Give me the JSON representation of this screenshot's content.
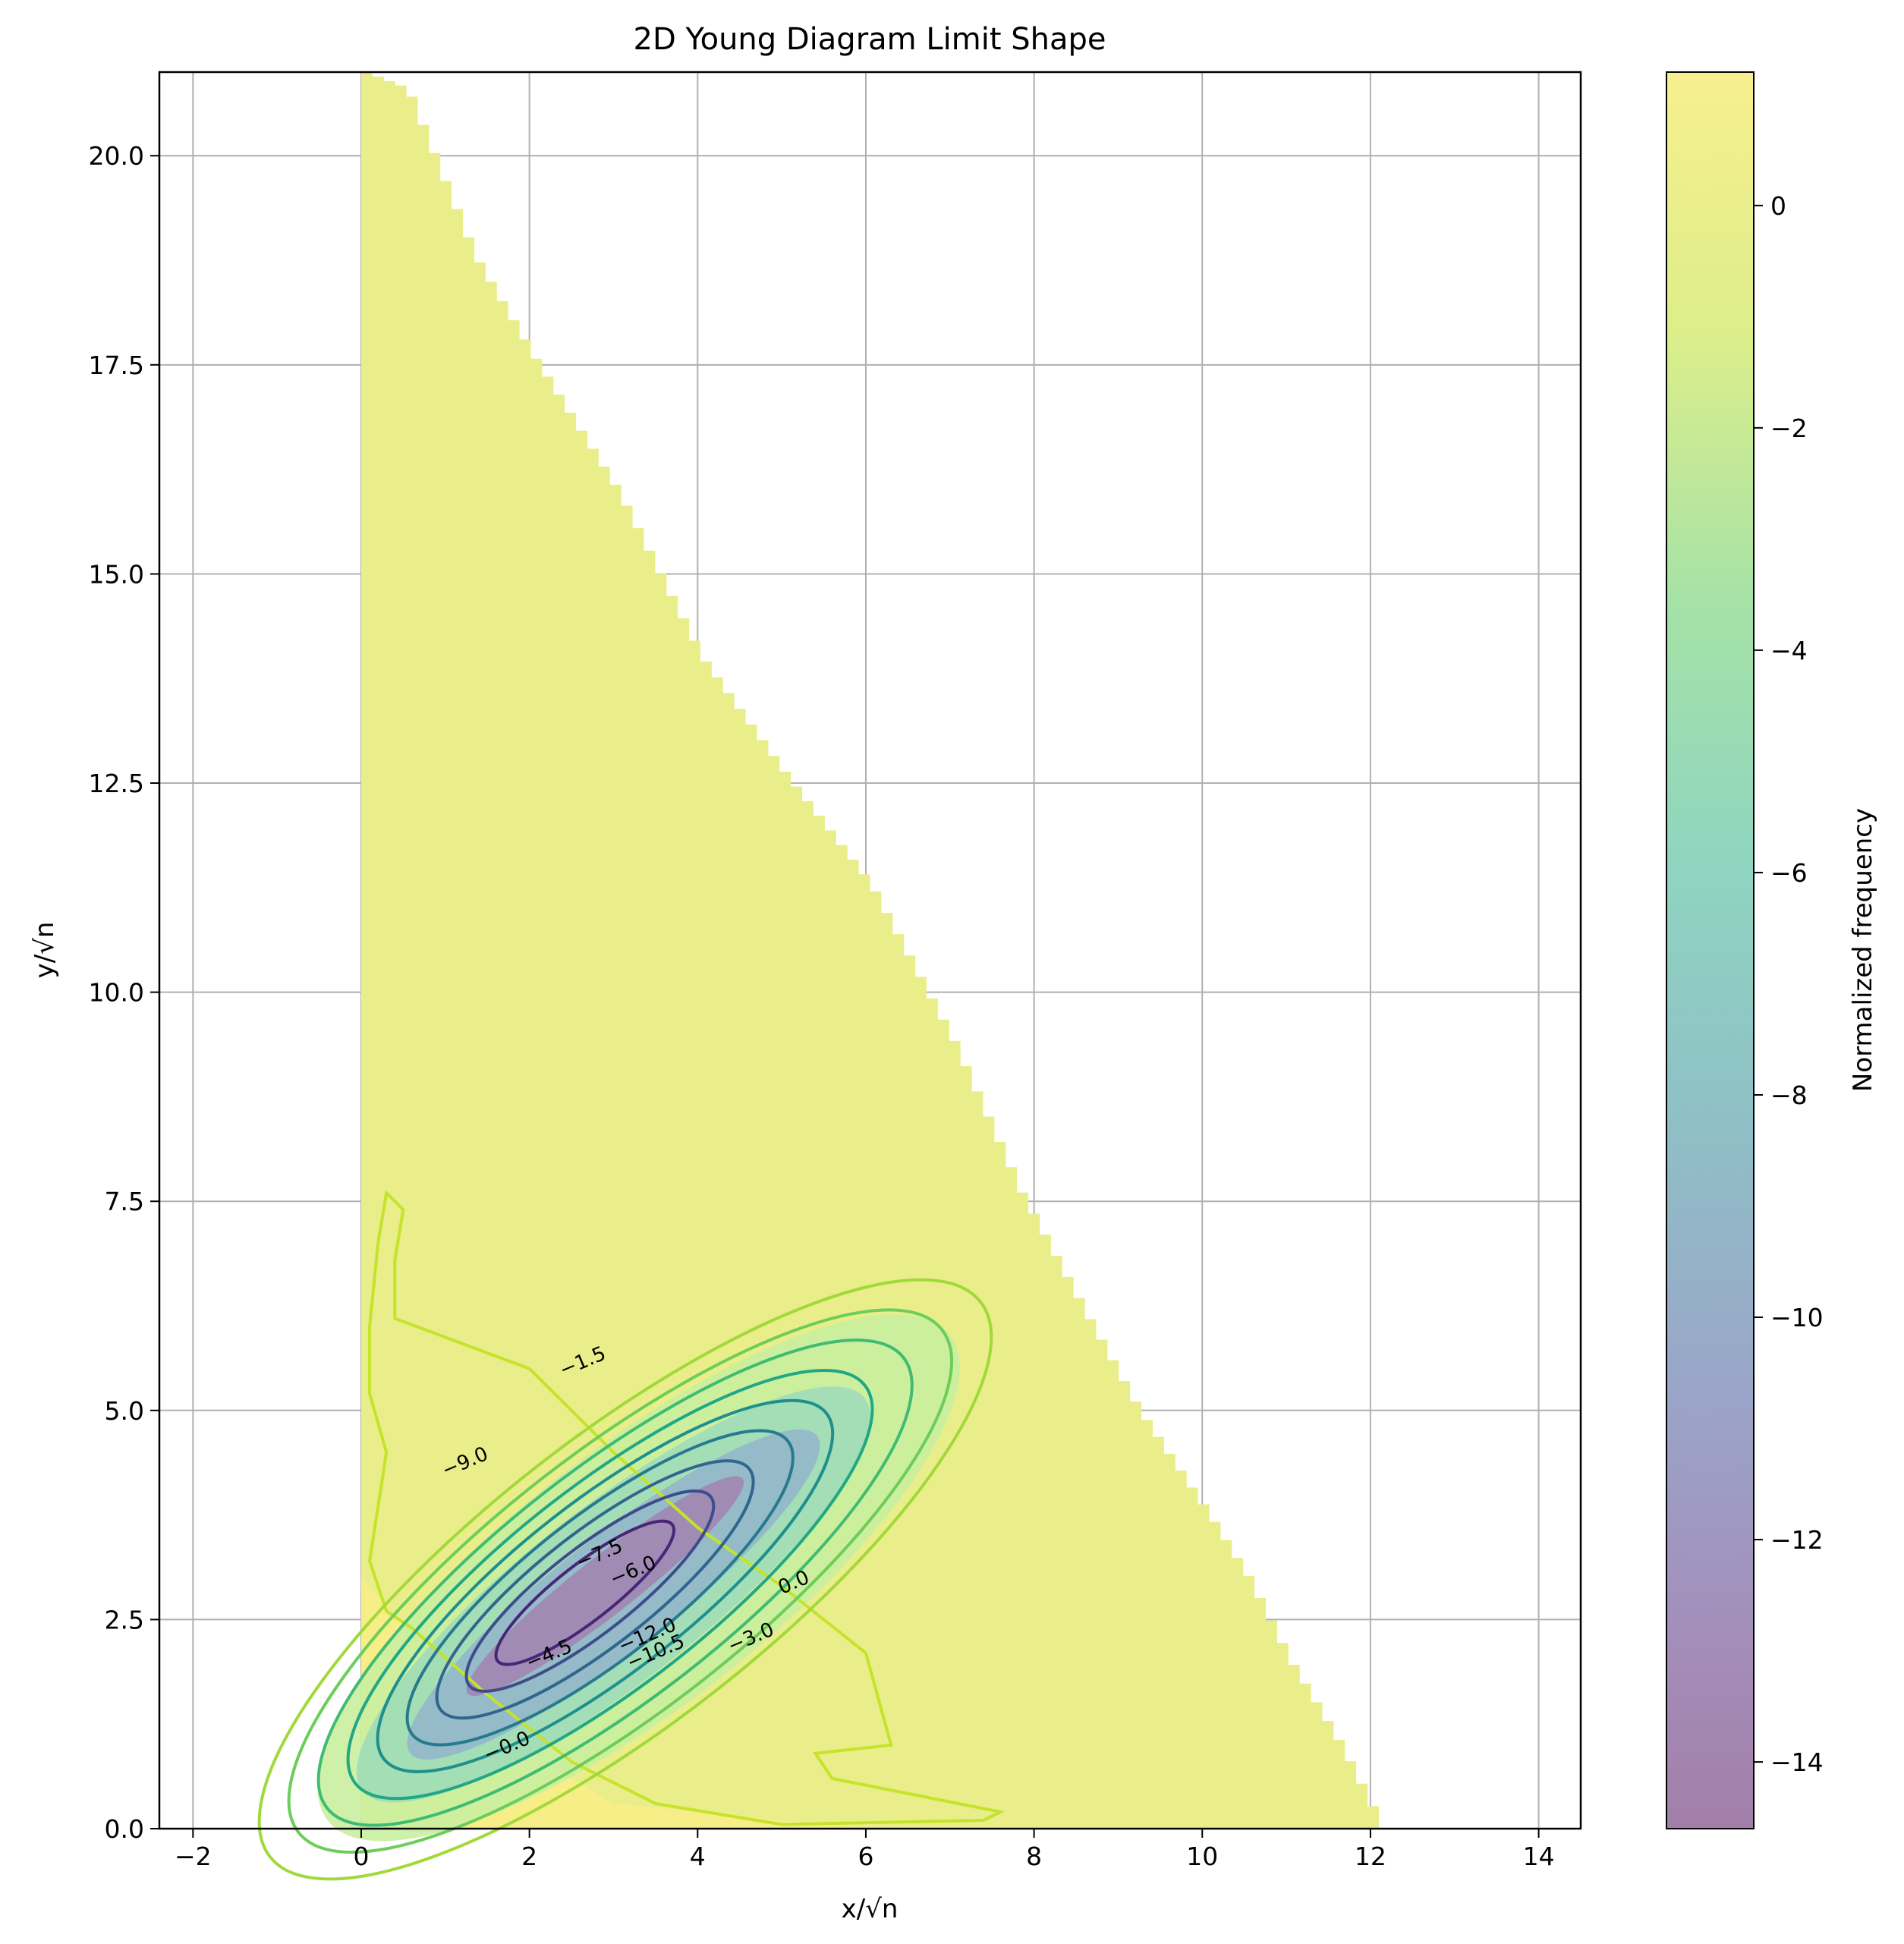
{
  "chart_data": {
    "type": "heatmap",
    "title": "2D Young Diagram Limit Shape",
    "xlabel": "x/√n",
    "ylabel": "y/√n",
    "xlim": [
      -2.4,
      14.5
    ],
    "ylim": [
      0,
      21
    ],
    "xticks": [
      -2,
      0,
      2,
      4,
      6,
      8,
      10,
      12,
      14
    ],
    "yticks": [
      0.0,
      2.5,
      5.0,
      7.5,
      10.0,
      12.5,
      15.0,
      17.5,
      20.0
    ],
    "xtick_labels": [
      "−2",
      "0",
      "2",
      "4",
      "6",
      "8",
      "10",
      "12",
      "14"
    ],
    "ytick_labels": [
      "0.0",
      "2.5",
      "5.0",
      "7.5",
      "10.0",
      "12.5",
      "15.0",
      "17.5",
      "20.0"
    ],
    "grid": true,
    "colorbar": {
      "label": "Normalized frequency",
      "range": [
        -14.6,
        1.2
      ],
      "ticks": [
        0,
        -2,
        -4,
        -6,
        -8,
        -10,
        -12,
        -14
      ],
      "tick_labels": [
        "0",
        "−2",
        "−4",
        "−6",
        "−8",
        "−10",
        "−12",
        "−14"
      ],
      "colormap": "viridis",
      "alpha": 0.5
    },
    "region_boundary": [
      [
        0.0,
        21.0
      ],
      [
        0.5,
        20.8
      ],
      [
        1.3,
        18.8
      ],
      [
        2.0,
        17.6
      ],
      [
        3.0,
        16.0
      ],
      [
        4.0,
        14.0
      ],
      [
        5.0,
        12.6
      ],
      [
        6.0,
        11.3
      ],
      [
        7.0,
        9.4
      ],
      [
        7.8,
        7.6
      ],
      [
        8.6,
        6.1
      ],
      [
        9.2,
        5.0
      ],
      [
        10.0,
        3.8
      ],
      [
        10.5,
        3.0
      ],
      [
        11.0,
        2.0
      ],
      [
        11.6,
        1.0
      ],
      [
        12.1,
        0.0
      ]
    ],
    "contour_levels": [
      0.0,
      -1.5,
      -3.0,
      -4.5,
      -6.0,
      -7.5,
      -9.0,
      -10.5,
      -12.0,
      -13.5
    ],
    "contour_labels": [
      {
        "text": "0.0",
        "x": 5.0,
        "y": 2.8
      },
      {
        "text": "−1.5",
        "x": 2.4,
        "y": 5.4
      },
      {
        "text": "−3.0",
        "x": 4.4,
        "y": 2.1
      },
      {
        "text": "−6.0",
        "x": 3.0,
        "y": 2.9
      },
      {
        "text": "−7.5",
        "x": 2.6,
        "y": 3.1
      },
      {
        "text": "−10.5",
        "x": 3.2,
        "y": 1.9
      },
      {
        "text": "−12.0",
        "x": 3.1,
        "y": 2.1
      },
      {
        "text": "−4.5",
        "x": 2.0,
        "y": 1.9
      },
      {
        "text": "−0.0",
        "x": 1.5,
        "y": 0.8
      },
      {
        "text": "−9.0",
        "x": 1.0,
        "y": 4.2
      }
    ]
  }
}
